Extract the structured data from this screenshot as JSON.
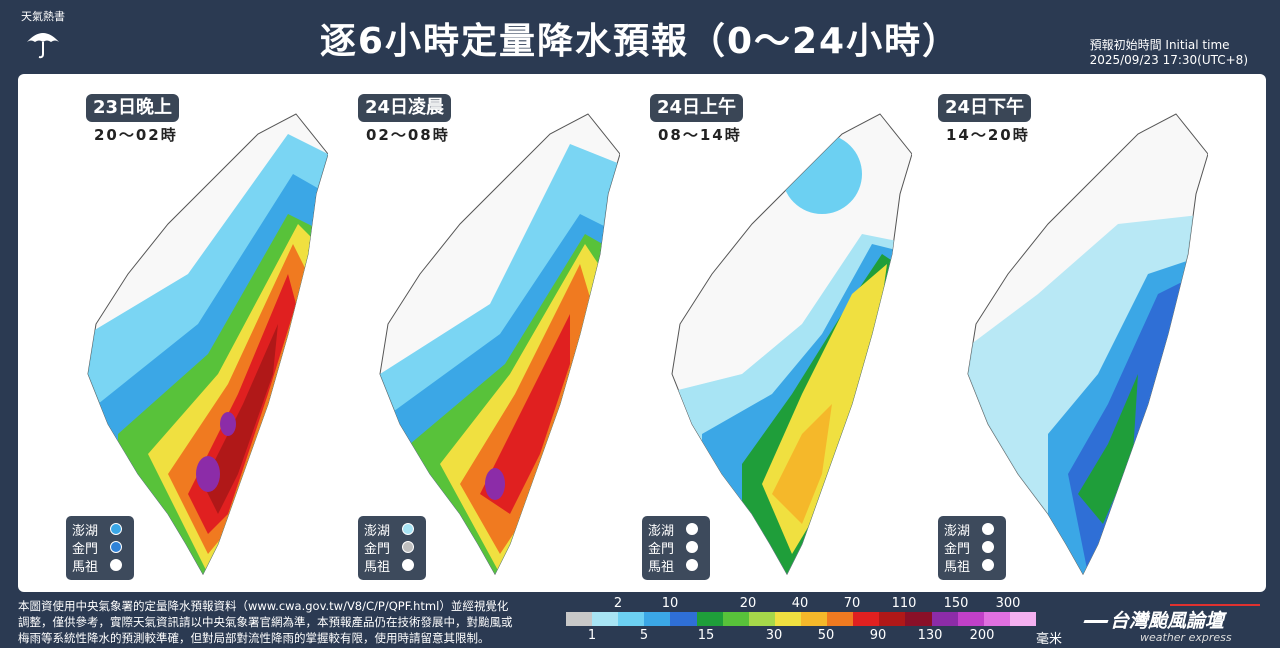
{
  "logo": {
    "text": "天氣熱書",
    "icon": "umbrella-icon"
  },
  "title": "逐6小時定量降水預報（0～24小時）",
  "init": {
    "line1": "預報初始時間 Initial time",
    "line2": "2025/09/23  17:30(UTC+8)"
  },
  "panels": [
    {
      "tag": "23日晚上",
      "time": "20～02時",
      "islands": [
        {
          "name": "澎湖",
          "color": "#3ba7e6"
        },
        {
          "name": "金門",
          "color": "#2f82d8"
        },
        {
          "name": "馬祖",
          "color": "#ffffff"
        }
      ]
    },
    {
      "tag": "24日凌晨",
      "time": "02～08時",
      "islands": [
        {
          "name": "澎湖",
          "color": "#a8e4f4"
        },
        {
          "name": "金門",
          "color": "#bfbfbf"
        },
        {
          "name": "馬祖",
          "color": "#ffffff"
        }
      ]
    },
    {
      "tag": "24日上午",
      "time": "08～14時",
      "islands": [
        {
          "name": "澎湖",
          "color": "#ffffff"
        },
        {
          "name": "金門",
          "color": "#ffffff"
        },
        {
          "name": "馬祖",
          "color": "#ffffff"
        }
      ]
    },
    {
      "tag": "24日下午",
      "time": "14～20時",
      "islands": [
        {
          "name": "澎湖",
          "color": "#ffffff"
        },
        {
          "name": "金門",
          "color": "#ffffff"
        },
        {
          "name": "馬祖",
          "color": "#ffffff"
        }
      ]
    }
  ],
  "footer": {
    "line1": "本圖資使用中央氣象署的定量降水預報資料（www.cwa.gov.tw/V8/C/P/QPF.html）並經視覺化",
    "line2": "調整，僅供參考，實際天氣資訊請以中央氣象署官網為準，本預報產品仍在技術發展中，對颱風或",
    "line3": "梅雨等系統性降水的預測較準確，但對局部對流性降雨的掌握較有限，使用時請留意其限制。"
  },
  "legend": {
    "top_labels": [
      "2",
      "10",
      "20",
      "40",
      "70",
      "110",
      "150",
      "300"
    ],
    "bottom_labels": [
      "1",
      "5",
      "15",
      "30",
      "50",
      "90",
      "130",
      "200"
    ],
    "colors": [
      "#c8c8c8",
      "#a8e4f4",
      "#6cd0f2",
      "#3ba7e6",
      "#2f6fd6",
      "#1f9e3a",
      "#58c23a",
      "#a6d84a",
      "#f0e040",
      "#f5b82a",
      "#f07a20",
      "#e02020",
      "#b01818",
      "#8a1028",
      "#8c2ca8",
      "#c040c8",
      "#e070e0",
      "#f4b0f0"
    ],
    "unit": "毫米"
  },
  "brand": {
    "name": "台灣颱風論壇",
    "sub": "weather express"
  }
}
